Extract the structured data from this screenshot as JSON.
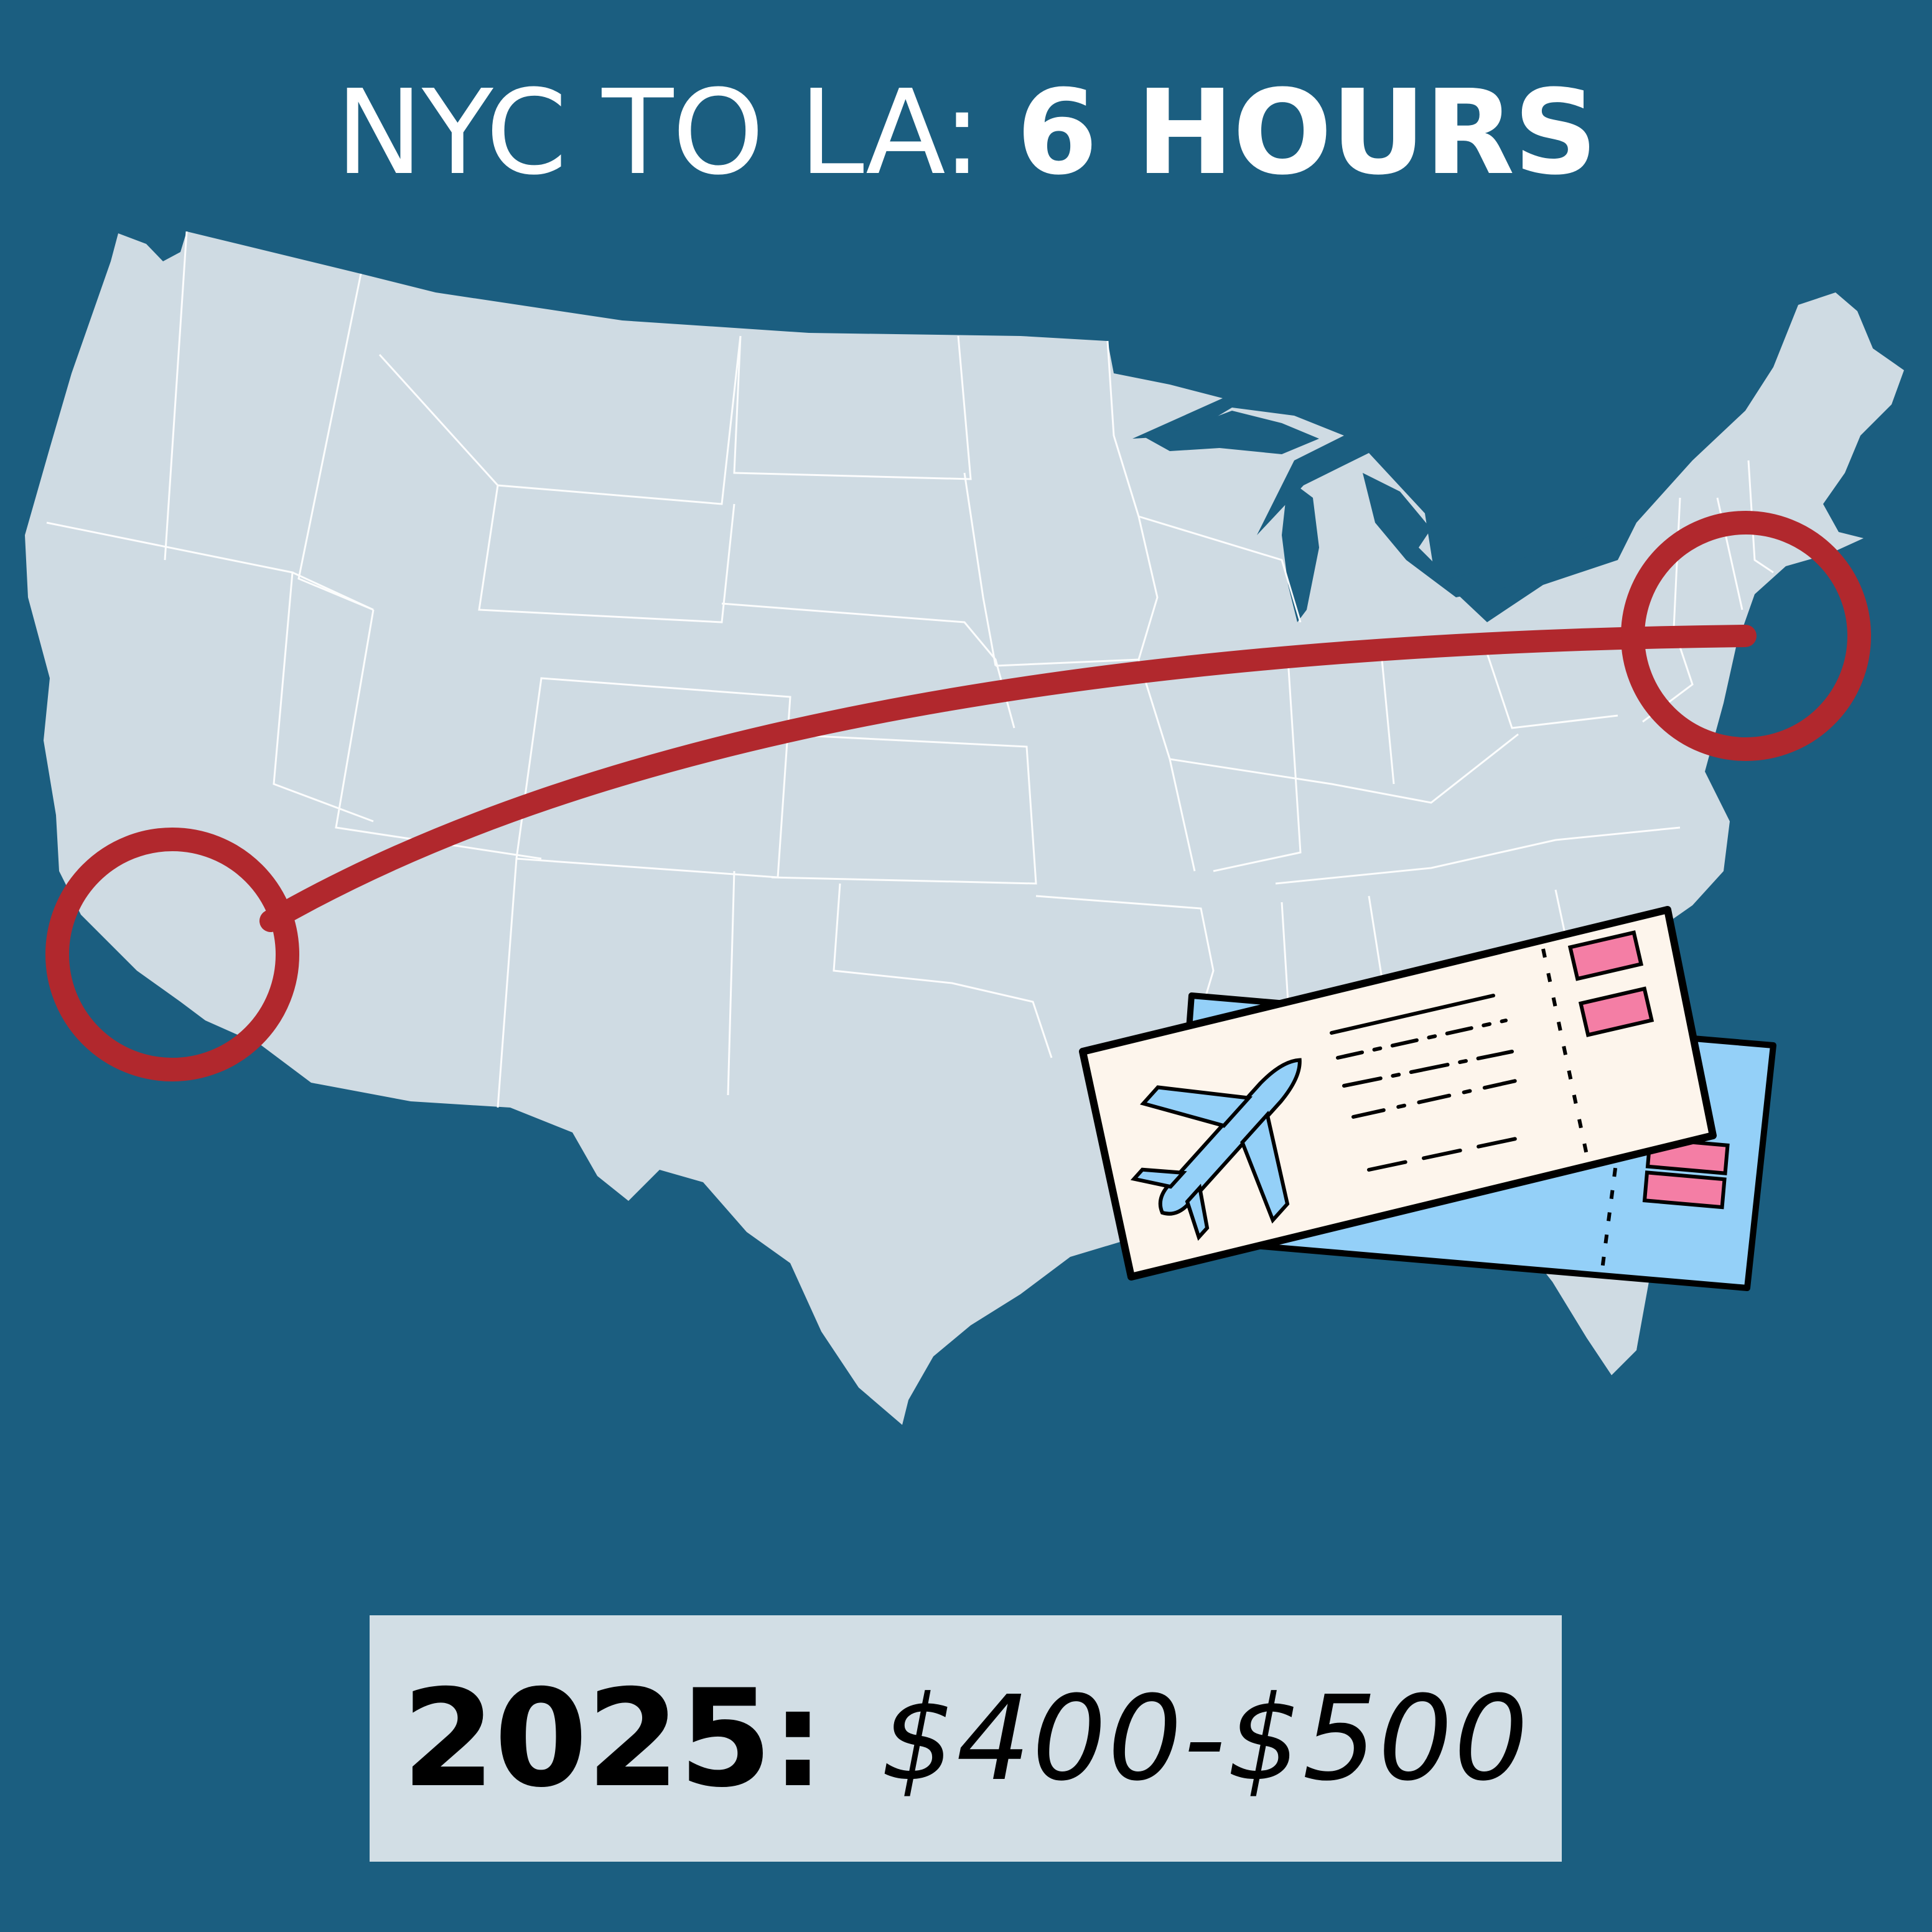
{
  "header": {
    "title_part_a": "NYC TO LA: ",
    "title_part_b": "6 HOURS"
  },
  "map": {
    "route": {
      "from": "NYC",
      "to": "LA"
    },
    "land_color": "#cfdbe3",
    "route_color": "#b1282d",
    "background_color": "#1b5e80"
  },
  "tickets": {
    "icon": "airplane-ticket-icon",
    "front_color": "#fdf5ec",
    "back_color": "#94d0f8",
    "stub_color": "#f47ea5"
  },
  "price": {
    "year_label": "2025:",
    "range": "$400-$500"
  }
}
